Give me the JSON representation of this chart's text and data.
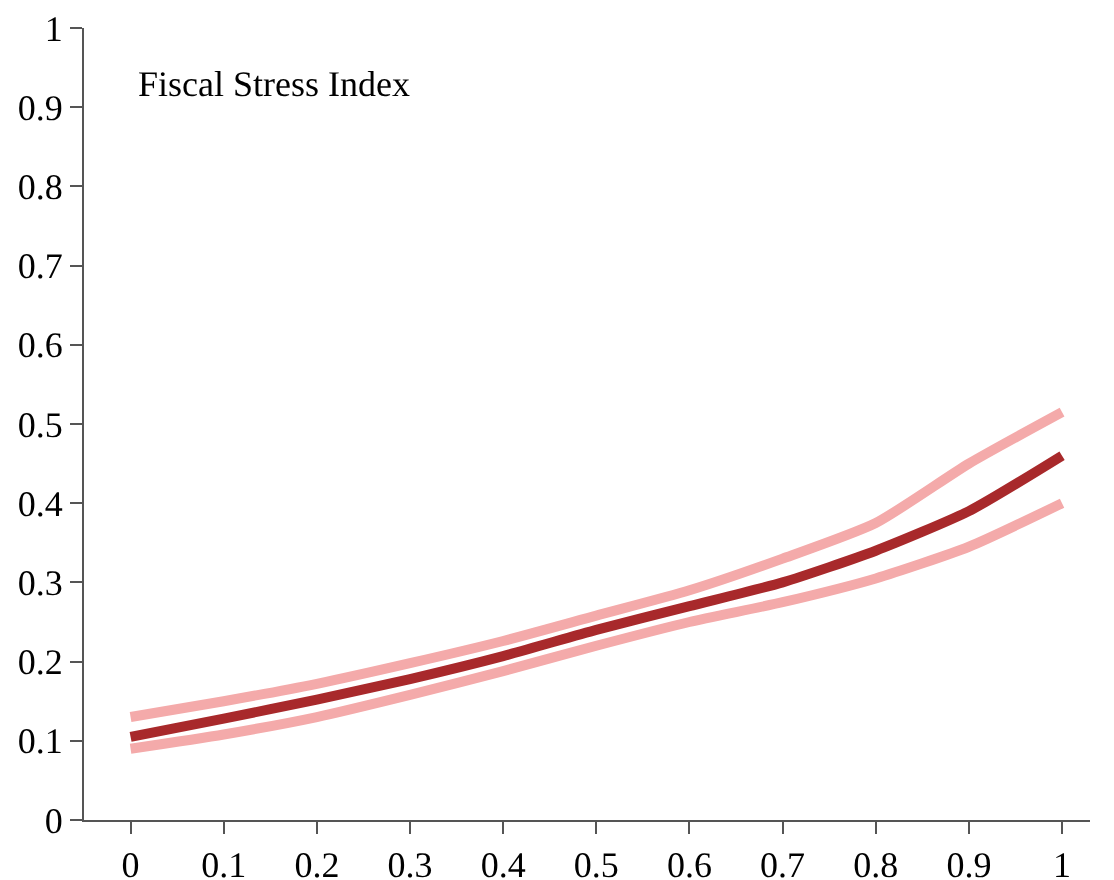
{
  "chart_data": {
    "type": "line",
    "annotations": [
      "Fiscal Stress Index"
    ],
    "x": [
      0,
      0.1,
      0.2,
      0.3,
      0.4,
      0.5,
      0.6,
      0.7,
      0.8,
      0.9,
      1
    ],
    "series": [
      {
        "color": "#f4aaaa",
        "values": [
          0.13,
          0.15,
          0.172,
          0.198,
          0.226,
          0.258,
          0.29,
          0.33,
          0.375,
          0.45,
          0.515
        ]
      },
      {
        "color": "#f4aaaa",
        "values": [
          0.09,
          0.108,
          0.13,
          0.158,
          0.188,
          0.22,
          0.25,
          0.275,
          0.305,
          0.345,
          0.4
        ]
      },
      {
        "color": "#a8292b",
        "values": [
          0.105,
          0.128,
          0.152,
          0.178,
          0.207,
          0.24,
          0.27,
          0.3,
          0.34,
          0.39,
          0.46
        ]
      }
    ],
    "xlim": [
      -0.05,
      1.03
    ],
    "xticks": [
      0,
      0.1,
      0.2,
      0.3,
      0.4,
      0.5,
      0.6,
      0.7,
      0.8,
      0.9,
      1
    ],
    "ylim": [
      0,
      1
    ],
    "yticks": [
      0,
      0.1,
      0.2,
      0.3,
      0.4,
      0.5,
      0.6,
      0.7,
      0.8,
      0.9,
      1
    ],
    "grid": false,
    "marker": "none",
    "line_style": "solid"
  }
}
